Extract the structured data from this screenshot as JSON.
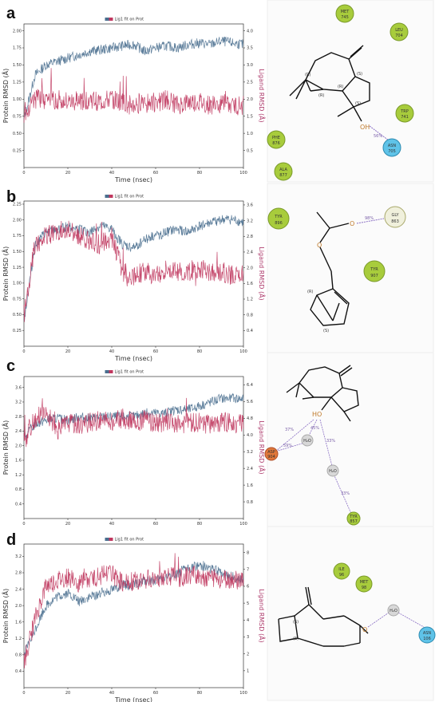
{
  "colors": {
    "protein": "#4a6f8f",
    "ligand": "#c0385f",
    "green_residue": "#a8cc3c",
    "blue_residue": "#5fc3e8",
    "red_residue": "#e0783a",
    "water": "#d8d8d8",
    "hbond": "#8a6fc4"
  },
  "legend_text": "Lig1 fit on Prot",
  "chart_data": [
    {
      "panel": "a",
      "type": "line",
      "xlabel": "Time (nsec)",
      "ylabel": "Protein RMSD (Å)",
      "y2label": "Ligand RMSD (Å)",
      "xlim": [
        0,
        100
      ],
      "ylim": [
        0.0,
        2.1
      ],
      "y2lim": [
        0.0,
        4.2
      ],
      "xticks": [
        0,
        20,
        40,
        60,
        80,
        100
      ],
      "yticks": [
        "0.25",
        "0.50",
        "0.75",
        "1.00",
        "1.25",
        "1.50",
        "1.75",
        "2.00"
      ],
      "y2ticks": [
        "0.5",
        "1.0",
        "1.5",
        "2.0",
        "2.5",
        "3.0",
        "3.5",
        "4.0"
      ],
      "series": [
        {
          "role": "protein",
          "x": [
            0,
            5,
            10,
            15,
            20,
            25,
            30,
            35,
            40,
            45,
            50,
            55,
            60,
            65,
            70,
            75,
            80,
            85,
            90,
            95,
            100
          ],
          "values": [
            0.7,
            1.35,
            1.5,
            1.55,
            1.6,
            1.65,
            1.7,
            1.72,
            1.75,
            1.78,
            1.8,
            1.7,
            1.75,
            1.78,
            1.75,
            1.8,
            1.82,
            1.8,
            1.85,
            1.82,
            1.8
          ]
        },
        {
          "role": "ligand",
          "x": [
            0,
            5,
            10,
            15,
            20,
            25,
            30,
            35,
            40,
            45,
            50,
            55,
            60,
            65,
            70,
            75,
            80,
            85,
            90,
            95,
            100
          ],
          "values": [
            1.6,
            2.0,
            2.0,
            2.0,
            1.9,
            1.9,
            2.0,
            1.9,
            2.0,
            1.9,
            1.8,
            2.0,
            1.9,
            2.0,
            1.8,
            1.9,
            1.9,
            1.8,
            1.9,
            1.8,
            1.8
          ]
        }
      ]
    },
    {
      "panel": "b",
      "type": "line",
      "xlabel": "Time (nsec)",
      "ylabel": "Protein RMSD (Å)",
      "y2label": "Ligand RMSD (Å)",
      "xlim": [
        0,
        100
      ],
      "ylim": [
        0.0,
        2.3
      ],
      "y2lim": [
        0.0,
        3.7
      ],
      "xticks": [
        0,
        20,
        40,
        60,
        80,
        100
      ],
      "yticks": [
        "0.25",
        "0.50",
        "0.75",
        "1.00",
        "1.25",
        "1.50",
        "1.75",
        "2.00",
        "2.25"
      ],
      "y2ticks": [
        "0.4",
        "0.8",
        "1.2",
        "1.6",
        "2.0",
        "2.4",
        "2.8",
        "3.2",
        "3.6"
      ],
      "series": [
        {
          "role": "protein",
          "x": [
            0,
            5,
            10,
            15,
            20,
            25,
            30,
            35,
            40,
            45,
            50,
            55,
            60,
            65,
            70,
            75,
            80,
            85,
            90,
            95,
            100
          ],
          "values": [
            0.4,
            1.6,
            1.8,
            1.85,
            1.9,
            1.85,
            1.8,
            1.9,
            1.85,
            1.6,
            1.55,
            1.7,
            1.75,
            1.8,
            1.85,
            1.8,
            1.9,
            1.95,
            2.0,
            2.0,
            1.95
          ]
        },
        {
          "role": "ligand",
          "x": [
            0,
            5,
            10,
            15,
            20,
            25,
            30,
            35,
            40,
            45,
            50,
            55,
            60,
            65,
            70,
            75,
            80,
            85,
            90,
            95,
            100
          ],
          "values": [
            0.8,
            2.6,
            2.8,
            2.9,
            3.0,
            2.8,
            2.7,
            2.6,
            2.8,
            1.9,
            1.8,
            1.9,
            1.8,
            2.0,
            1.9,
            1.9,
            2.0,
            1.9,
            1.9,
            1.8,
            1.8
          ]
        }
      ]
    },
    {
      "panel": "c",
      "type": "line",
      "xlabel": "",
      "ylabel": "Protein RMSD (Å)",
      "y2label": "Ligand RMSD (Å)",
      "xlim": [
        0,
        100
      ],
      "ylim": [
        0.0,
        3.9
      ],
      "y2lim": [
        0.0,
        6.8
      ],
      "xticks": [
        0,
        20,
        40,
        60,
        80,
        100
      ],
      "yticks": [
        "0.4",
        "0.8",
        "1.2",
        "1.6",
        "2.0",
        "2.4",
        "2.8",
        "3.2",
        "3.6"
      ],
      "y2ticks": [
        "0.8",
        "1.6",
        "2.4",
        "3.2",
        "4.0",
        "4.8",
        "5.6",
        "6.4"
      ],
      "series": [
        {
          "role": "protein",
          "x": [
            0,
            5,
            10,
            15,
            20,
            25,
            30,
            35,
            40,
            45,
            50,
            55,
            60,
            65,
            70,
            75,
            80,
            85,
            90,
            95,
            100
          ],
          "values": [
            2.2,
            2.6,
            2.7,
            2.75,
            2.7,
            2.8,
            2.75,
            2.8,
            2.8,
            2.8,
            2.8,
            2.9,
            2.9,
            2.9,
            3.0,
            3.0,
            3.1,
            3.2,
            3.3,
            3.3,
            3.3
          ]
        },
        {
          "role": "ligand",
          "x": [
            0,
            5,
            10,
            15,
            20,
            25,
            30,
            35,
            40,
            45,
            50,
            55,
            60,
            65,
            70,
            75,
            80,
            85,
            90,
            95,
            100
          ],
          "values": [
            3.6,
            4.8,
            5.2,
            4.2,
            4.6,
            4.5,
            4.6,
            4.7,
            4.6,
            4.8,
            4.6,
            4.7,
            4.6,
            4.6,
            4.5,
            4.6,
            4.6,
            4.5,
            4.6,
            4.6,
            4.5
          ]
        }
      ]
    },
    {
      "panel": "d",
      "type": "line",
      "xlabel": "Time (nsec)",
      "ylabel": "Protein RMSD (Å)",
      "y2label": "Ligand RMSD (Å)",
      "xlim": [
        0,
        100
      ],
      "ylim": [
        0.0,
        3.5
      ],
      "y2lim": [
        0.0,
        8.5
      ],
      "xticks": [
        0,
        20,
        40,
        60,
        80,
        100
      ],
      "yticks": [
        "0.4",
        "0.8",
        "1.2",
        "1.6",
        "2.0",
        "2.4",
        "2.8",
        "3.2"
      ],
      "y2ticks": [
        "1",
        "2",
        "3",
        "4",
        "5",
        "6",
        "7",
        "8"
      ],
      "series": [
        {
          "role": "protein",
          "x": [
            0,
            5,
            10,
            15,
            20,
            25,
            30,
            35,
            40,
            45,
            50,
            55,
            60,
            65,
            70,
            75,
            80,
            85,
            90,
            95,
            100
          ],
          "values": [
            0.8,
            1.4,
            2.0,
            2.2,
            2.3,
            2.1,
            2.2,
            2.3,
            2.4,
            2.5,
            2.5,
            2.6,
            2.6,
            2.7,
            2.8,
            2.9,
            3.0,
            2.9,
            2.8,
            2.7,
            2.6
          ]
        },
        {
          "role": "ligand",
          "x": [
            0,
            5,
            10,
            15,
            20,
            25,
            30,
            35,
            40,
            45,
            50,
            55,
            60,
            65,
            70,
            75,
            80,
            85,
            90,
            95,
            100
          ],
          "values": [
            1.5,
            4.0,
            6.0,
            6.3,
            6.5,
            6.2,
            6.4,
            6.6,
            6.7,
            6.2,
            6.3,
            6.4,
            6.5,
            6.6,
            6.5,
            6.6,
            6.7,
            6.5,
            6.4,
            6.4,
            6.3
          ]
        }
      ]
    }
  ],
  "panels": [
    {
      "letter": "a",
      "residues": [
        {
          "name": "MET",
          "num": "745"
        },
        {
          "name": "LEU",
          "num": "704"
        },
        {
          "name": "TRP",
          "num": "741"
        },
        {
          "name": "PHE",
          "num": "876"
        },
        {
          "name": "ALA",
          "num": "877"
        },
        {
          "name": "ASN",
          "num": "705"
        }
      ],
      "hbond_pct": "56%",
      "hetero": "OH",
      "stereo": [
        "(R)",
        "(R)",
        "(R)",
        "(S)",
        "(S)"
      ]
    },
    {
      "letter": "b",
      "residues": [
        {
          "name": "TYR",
          "num": "896"
        },
        {
          "name": "GLY",
          "num": "863"
        },
        {
          "name": "TYR",
          "num": "907"
        }
      ],
      "hbond_pct": "98%",
      "hetero_o1": "O",
      "hetero_o2": "O",
      "stereo": [
        "(R)",
        "(S)"
      ]
    },
    {
      "letter": "c",
      "residues": [
        {
          "name": "ASP",
          "num": "904"
        },
        {
          "name": "TYR",
          "num": "857"
        }
      ],
      "waters": [
        "H₂O",
        "H₂O"
      ],
      "pcts": [
        "37%",
        "59%",
        "45%",
        "33%",
        "33%"
      ],
      "hetero": "HO"
    },
    {
      "letter": "d",
      "residues": [
        {
          "name": "ILE",
          "num": "96"
        },
        {
          "name": "MET",
          "num": "98"
        },
        {
          "name": "ASN",
          "num": "106"
        }
      ],
      "waters": [
        "H₂O"
      ],
      "hetero": "O",
      "stereo": [
        "(S)",
        "(S)"
      ]
    }
  ]
}
